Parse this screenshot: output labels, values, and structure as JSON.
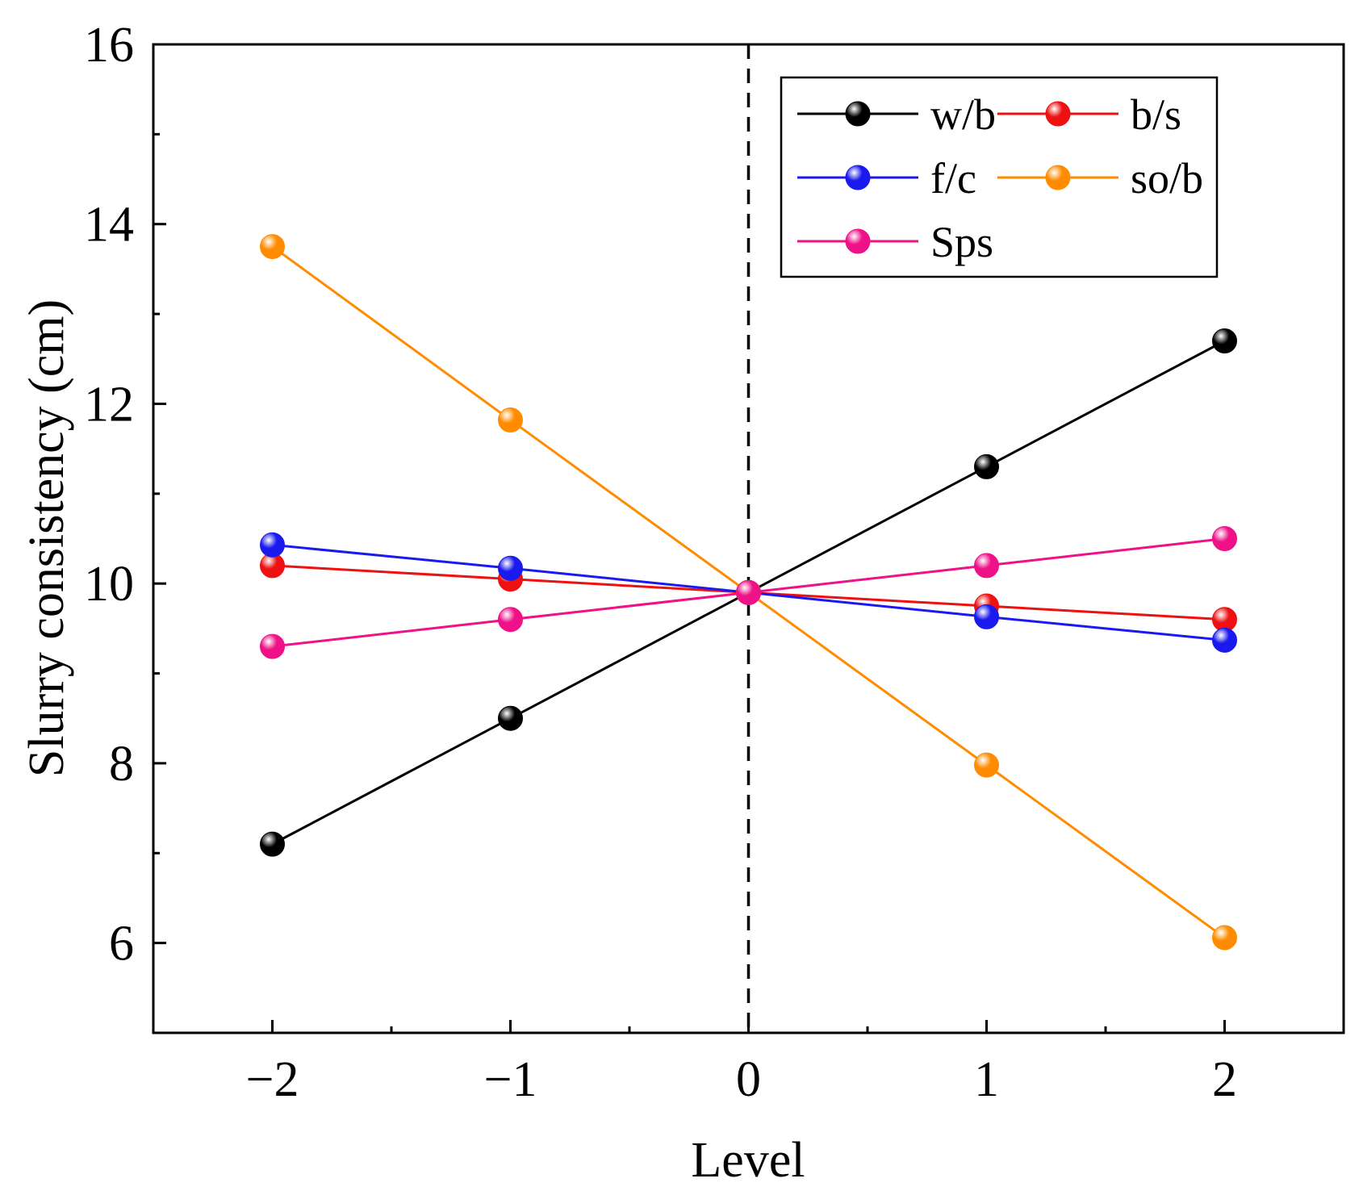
{
  "chart_data": {
    "type": "line",
    "title": "",
    "xlabel": "Level",
    "ylabel": "Slurry consistency (cm)",
    "xlim": [
      -2.5,
      2.5
    ],
    "ylim": [
      5,
      16
    ],
    "x": [
      -2,
      -1,
      0,
      1,
      2
    ],
    "x_ticks": [
      -2,
      -1,
      0,
      1,
      2
    ],
    "x_tick_labels": [
      "−2",
      "−1",
      "0",
      "1",
      "2"
    ],
    "y_ticks": [
      6,
      8,
      10,
      12,
      14,
      16
    ],
    "y_tick_labels": [
      "6",
      "8",
      "10",
      "12",
      "14",
      "16"
    ],
    "reference_line": {
      "x": 0,
      "style": "dashed"
    },
    "grid": false,
    "legend_position": "top-right",
    "series": [
      {
        "name": "w/b",
        "color": "#000000",
        "values": [
          7.1,
          8.5,
          9.9,
          11.3,
          12.7
        ]
      },
      {
        "name": "b/s",
        "color": "#ee1111",
        "values": [
          10.2,
          10.05,
          9.9,
          9.75,
          9.6
        ]
      },
      {
        "name": "f/c",
        "color": "#1a1aee",
        "values": [
          10.43,
          10.17,
          9.9,
          9.63,
          9.37
        ]
      },
      {
        "name": "so/b",
        "color": "#ff8c00",
        "values": [
          13.75,
          11.82,
          9.9,
          7.98,
          6.06
        ]
      },
      {
        "name": "Sps",
        "color": "#ee1188",
        "values": [
          9.3,
          9.6,
          9.9,
          10.2,
          10.5
        ]
      }
    ]
  }
}
